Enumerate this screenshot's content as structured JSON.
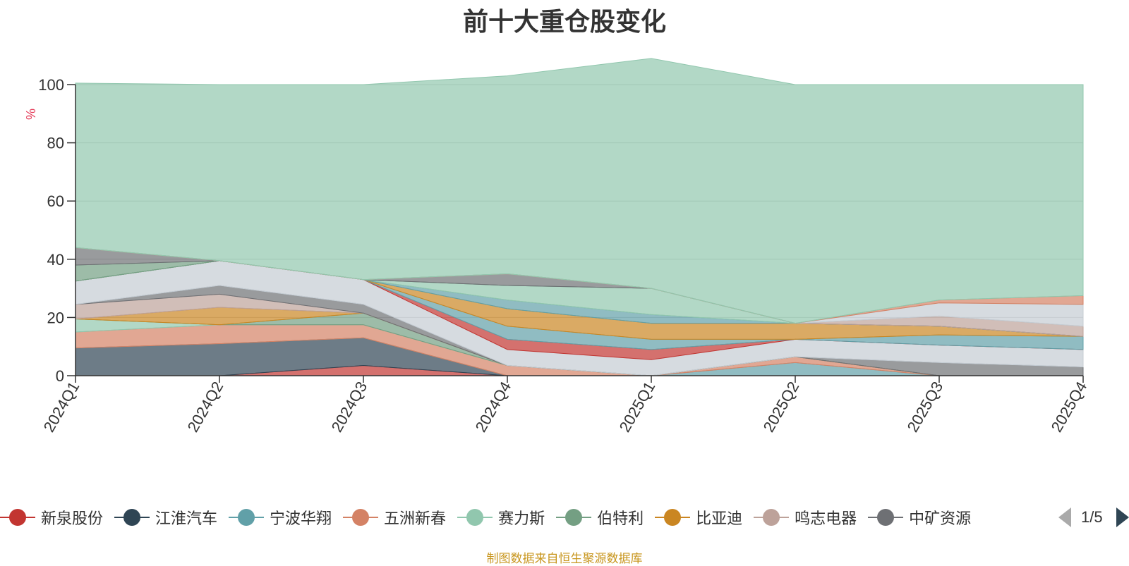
{
  "chart_data": {
    "type": "area",
    "title": "前十大重仓股变化",
    "ylabel": "%",
    "ylim": [
      0,
      100
    ],
    "yticks": [
      "0",
      "20",
      "40",
      "60",
      "80",
      "100"
    ],
    "categories": [
      "2024Q1",
      "2024Q2",
      "2024Q3",
      "2024Q4",
      "2025Q1",
      "2025Q2",
      "2025Q3",
      "2025Q4"
    ],
    "stacked": true,
    "grid": true,
    "legend_position": "bottom",
    "series": [
      {
        "name": "新泉股份",
        "color": "#c23531",
        "values": [
          0,
          0,
          3.5,
          0,
          0,
          0,
          0,
          0
        ]
      },
      {
        "name": "江淮汽车",
        "color": "#2f4554",
        "values": [
          9.5,
          11,
          9.5,
          0,
          0,
          0,
          0,
          0
        ]
      },
      {
        "name": "宁波华翔",
        "color": "#61a0a8",
        "values": [
          0,
          0,
          0,
          0,
          0,
          4.5,
          0,
          0
        ]
      },
      {
        "name": "五洲新春",
        "color": "#d48265",
        "values": [
          5.5,
          6.5,
          4.5,
          3.5,
          0,
          2,
          0,
          0
        ]
      },
      {
        "name": "赛力斯",
        "color": "#91c7ae",
        "values": [
          4.5,
          0,
          0,
          0,
          0,
          0,
          0,
          0
        ]
      },
      {
        "name": "伯特利",
        "color": "#749f83",
        "values": [
          0,
          0,
          4,
          0,
          0,
          0,
          0,
          0
        ]
      },
      {
        "name": "比亚迪",
        "color": "#ca8622",
        "values": [
          0,
          6,
          0,
          0,
          0,
          0,
          0,
          0
        ]
      },
      {
        "name": "鸣志电器",
        "color": "#bda29a",
        "values": [
          5,
          4.5,
          0,
          0,
          0,
          0,
          0,
          0
        ]
      },
      {
        "name": "中矿资源",
        "color": "#6e7074",
        "values": [
          0,
          3,
          3,
          0,
          0,
          0,
          4.5,
          3
        ]
      },
      {
        "name": null,
        "color": "#c4ccd3",
        "values": [
          8,
          8.5,
          8.5,
          5.5,
          5.5,
          6,
          6,
          6
        ]
      },
      {
        "name": null,
        "color": "#c23531",
        "values": [
          0,
          0,
          0,
          3.5,
          3.5,
          0,
          0,
          0
        ]
      },
      {
        "name": null,
        "color": "#61a0a8",
        "values": [
          0,
          0,
          0,
          4.5,
          3.5,
          0,
          3.5,
          4.5
        ]
      },
      {
        "name": null,
        "color": "#ca8622",
        "values": [
          0,
          0,
          0,
          6,
          5.5,
          5.5,
          3,
          0
        ]
      },
      {
        "name": null,
        "color": "#61a0a8",
        "values": [
          0,
          0,
          0,
          3,
          3,
          0,
          0,
          0
        ]
      },
      {
        "name": null,
        "color": "#91c7ae",
        "values": [
          0,
          0,
          0,
          5,
          9,
          0,
          0,
          0
        ]
      },
      {
        "name": null,
        "color": "#749f83",
        "values": [
          5.5,
          0,
          0,
          0,
          0,
          0,
          0,
          0
        ]
      },
      {
        "name": null,
        "color": "#6e7074",
        "values": [
          6,
          0,
          0,
          4,
          0,
          0,
          0,
          0
        ]
      },
      {
        "name": null,
        "color": "#bda29a",
        "values": [
          0,
          0,
          0,
          0,
          0,
          0,
          3.5,
          3.5
        ]
      },
      {
        "name": null,
        "color": "#c4ccd3",
        "values": [
          0,
          0,
          0,
          0,
          0,
          0,
          4.5,
          7.5
        ]
      },
      {
        "name": null,
        "color": "#d48265",
        "values": [
          0,
          0,
          0,
          0,
          0,
          0,
          1,
          3
        ]
      },
      {
        "name": null,
        "color": "#91c7ae",
        "values": [
          56.5,
          60.5,
          67,
          68,
          79,
          82,
          74,
          72.5
        ]
      }
    ]
  },
  "legend": {
    "pager_text": "1/5"
  },
  "source_note": "制图数据来自恒生聚源数据库"
}
